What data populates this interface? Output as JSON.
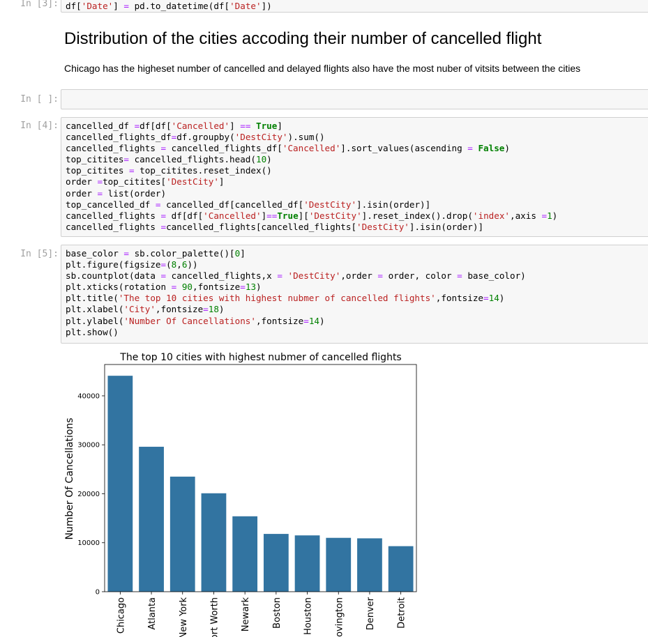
{
  "cells": {
    "in3": {
      "prompt": "In [3]:",
      "code_html": "df[<span class=\"s\">'Date'</span>] <span class=\"o\">=</span> pd.to_datetime(df[<span class=\"s\">'Date'</span>])"
    },
    "markdown": {
      "heading": "Distribution of the cities accoding their number of cancelled flight",
      "paragraph": "Chicago has the higheset number of cancelled and delayed flights also have the most nuber of vitsits between the cities"
    },
    "in_empty": {
      "prompt": "In [ ]:"
    },
    "in4": {
      "prompt": "In [4]:",
      "code_html": "cancelled_df <span class=\"o\">=</span>df[df[<span class=\"s\">'Cancelled'</span>] <span class=\"o\">==</span> <span class=\"k\">True</span>]\ncancelled_flights_df<span class=\"o\">=</span>df.groupby(<span class=\"s\">'DestCity'</span>).sum()\ncancelled_flights <span class=\"o\">=</span> cancelled_flights_df[<span class=\"s\">'Cancelled'</span>].sort_values(ascending <span class=\"o\">=</span> <span class=\"k\">False</span>)\ntop_citites<span class=\"o\">=</span> cancelled_flights.head(<span class=\"n\">10</span>)\ntop_citites <span class=\"o\">=</span> top_citites.reset_index()\norder <span class=\"o\">=</span>top_citites[<span class=\"s\">'DestCity'</span>]\norder <span class=\"o\">=</span> list(order)\ntop_cancelled_df <span class=\"o\">=</span> cancelled_df[cancelled_df[<span class=\"s\">'DestCity'</span>].isin(order)]\ncancelled_flights <span class=\"o\">=</span> df[df[<span class=\"s\">'Cancelled'</span>]<span class=\"o\">==</span><span class=\"k\">True</span>][<span class=\"s\">'DestCity'</span>].reset_index().drop(<span class=\"s\">'index'</span>,axis <span class=\"o\">=</span><span class=\"n\">1</span>)\ncancelled_flights <span class=\"o\">=</span>cancelled_flights[cancelled_flights[<span class=\"s\">'DestCity'</span>].isin(order)]"
    },
    "in5": {
      "prompt": "In [5]:",
      "code_html": "base_color <span class=\"o\">=</span> sb.color_palette()[<span class=\"n\">0</span>]\nplt.figure(figsize<span class=\"o\">=</span>(<span class=\"n\">8</span>,<span class=\"n\">6</span>))\nsb.countplot(data <span class=\"o\">=</span> cancelled_flights,x <span class=\"o\">=</span> <span class=\"s\">'DestCity'</span>,order <span class=\"o\">=</span> order, color <span class=\"o\">=</span> base_color)\nplt.xticks(rotation <span class=\"o\">=</span> <span class=\"n\">90</span>,fontsize<span class=\"o\">=</span><span class=\"n\">13</span>)\nplt.title(<span class=\"s\">'The top 10 cities with highest nubmer of cancelled flights'</span>,fontsize<span class=\"o\">=</span><span class=\"n\">14</span>)\nplt.xlabel(<span class=\"s\">'City'</span>,fontsize<span class=\"o\">=</span><span class=\"n\">18</span>)\nplt.ylabel(<span class=\"s\">'Number Of Cancellations'</span>,fontsize<span class=\"o\">=</span><span class=\"n\">14</span>)\nplt.show()"
    }
  },
  "colors": {
    "bar": "#3274a1"
  },
  "chart_data": {
    "type": "bar",
    "title": "The top 10 cities with highest nubmer of cancelled flights",
    "ylabel": "Number Of Cancellations",
    "categories": [
      "Chicago",
      "Atlanta",
      "New York",
      "Fort Worth",
      "Newark",
      "Boston",
      "Houston",
      "Covington",
      "Denver",
      "Detroit"
    ],
    "values": [
      44100,
      29600,
      23500,
      20100,
      15400,
      11800,
      11500,
      11000,
      10900,
      9300
    ],
    "ylim": [
      0,
      46400
    ],
    "yticks": [
      0,
      10000,
      20000,
      30000,
      40000
    ],
    "grid": false
  }
}
